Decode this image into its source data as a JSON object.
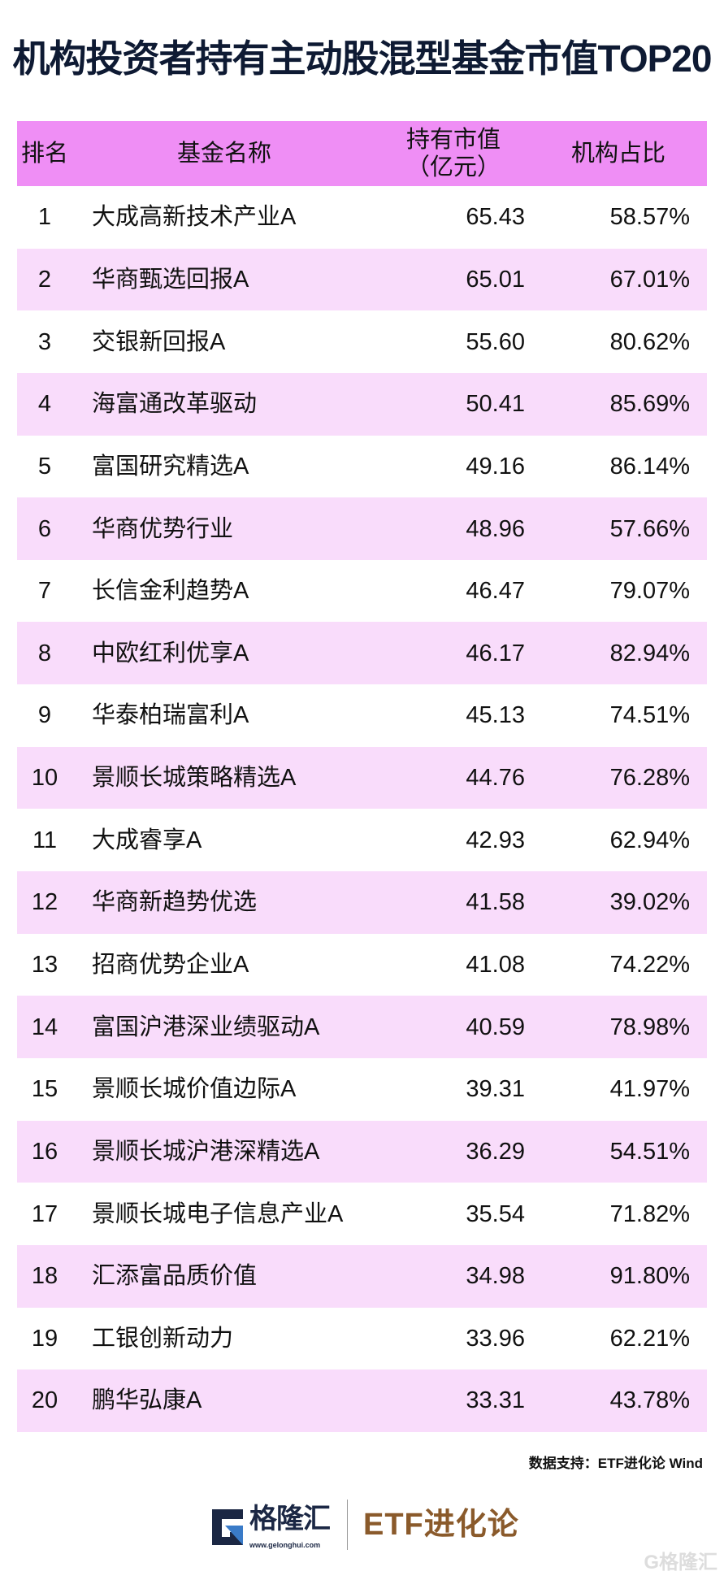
{
  "title": "机构投资者持有主动股混型基金市值TOP20",
  "table": {
    "headers": {
      "rank": "排名",
      "name": "基金名称",
      "value_line1": "持有市值",
      "value_line2": "（亿元）",
      "ratio": "机构占比"
    },
    "rows": [
      {
        "rank": "1",
        "name": "大成高新技术产业A",
        "value": "65.43",
        "ratio": "58.57%"
      },
      {
        "rank": "2",
        "name": "华商甄选回报A",
        "value": "65.01",
        "ratio": "67.01%"
      },
      {
        "rank": "3",
        "name": "交银新回报A",
        "value": "55.60",
        "ratio": "80.62%"
      },
      {
        "rank": "4",
        "name": "海富通改革驱动",
        "value": "50.41",
        "ratio": "85.69%"
      },
      {
        "rank": "5",
        "name": "富国研究精选A",
        "value": "49.16",
        "ratio": "86.14%"
      },
      {
        "rank": "6",
        "name": "华商优势行业",
        "value": "48.96",
        "ratio": "57.66%"
      },
      {
        "rank": "7",
        "name": "长信金利趋势A",
        "value": "46.47",
        "ratio": "79.07%"
      },
      {
        "rank": "8",
        "name": "中欧红利优享A",
        "value": "46.17",
        "ratio": "82.94%"
      },
      {
        "rank": "9",
        "name": "华泰柏瑞富利A",
        "value": "45.13",
        "ratio": "74.51%"
      },
      {
        "rank": "10",
        "name": "景顺长城策略精选A",
        "value": "44.76",
        "ratio": "76.28%"
      },
      {
        "rank": "11",
        "name": "大成睿享A",
        "value": "42.93",
        "ratio": "62.94%"
      },
      {
        "rank": "12",
        "name": "华商新趋势优选",
        "value": "41.58",
        "ratio": "39.02%"
      },
      {
        "rank": "13",
        "name": "招商优势企业A",
        "value": "41.08",
        "ratio": "74.22%"
      },
      {
        "rank": "14",
        "name": "富国沪港深业绩驱动A",
        "value": "40.59",
        "ratio": "78.98%"
      },
      {
        "rank": "15",
        "name": "景顺长城价值边际A",
        "value": "39.31",
        "ratio": "41.97%"
      },
      {
        "rank": "16",
        "name": "景顺长城沪港深精选A",
        "value": "36.29",
        "ratio": "54.51%"
      },
      {
        "rank": "17",
        "name": "景顺长城电子信息产业A",
        "value": "35.54",
        "ratio": "71.82%"
      },
      {
        "rank": "18",
        "name": "汇添富品质价值",
        "value": "34.98",
        "ratio": "91.80%"
      },
      {
        "rank": "19",
        "name": "工银创新动力",
        "value": "33.96",
        "ratio": "62.21%"
      },
      {
        "rank": "20",
        "name": "鹏华弘康A",
        "value": "33.31",
        "ratio": "43.78%"
      }
    ]
  },
  "source": "数据支持：ETF进化论 Wind",
  "footer": {
    "gelonghui_name": "格隆汇",
    "gelonghui_url": "www.gelonghui.com",
    "etf_brand": "ETF进化论",
    "watermark": "格隆汇"
  },
  "colors": {
    "header_bg": "#ef8ef5",
    "alt_row_bg": "#f9dcfb",
    "etf_brand": "#8a5a2b",
    "logo_dark": "#1b2744",
    "logo_blue": "#3a7bc8"
  }
}
